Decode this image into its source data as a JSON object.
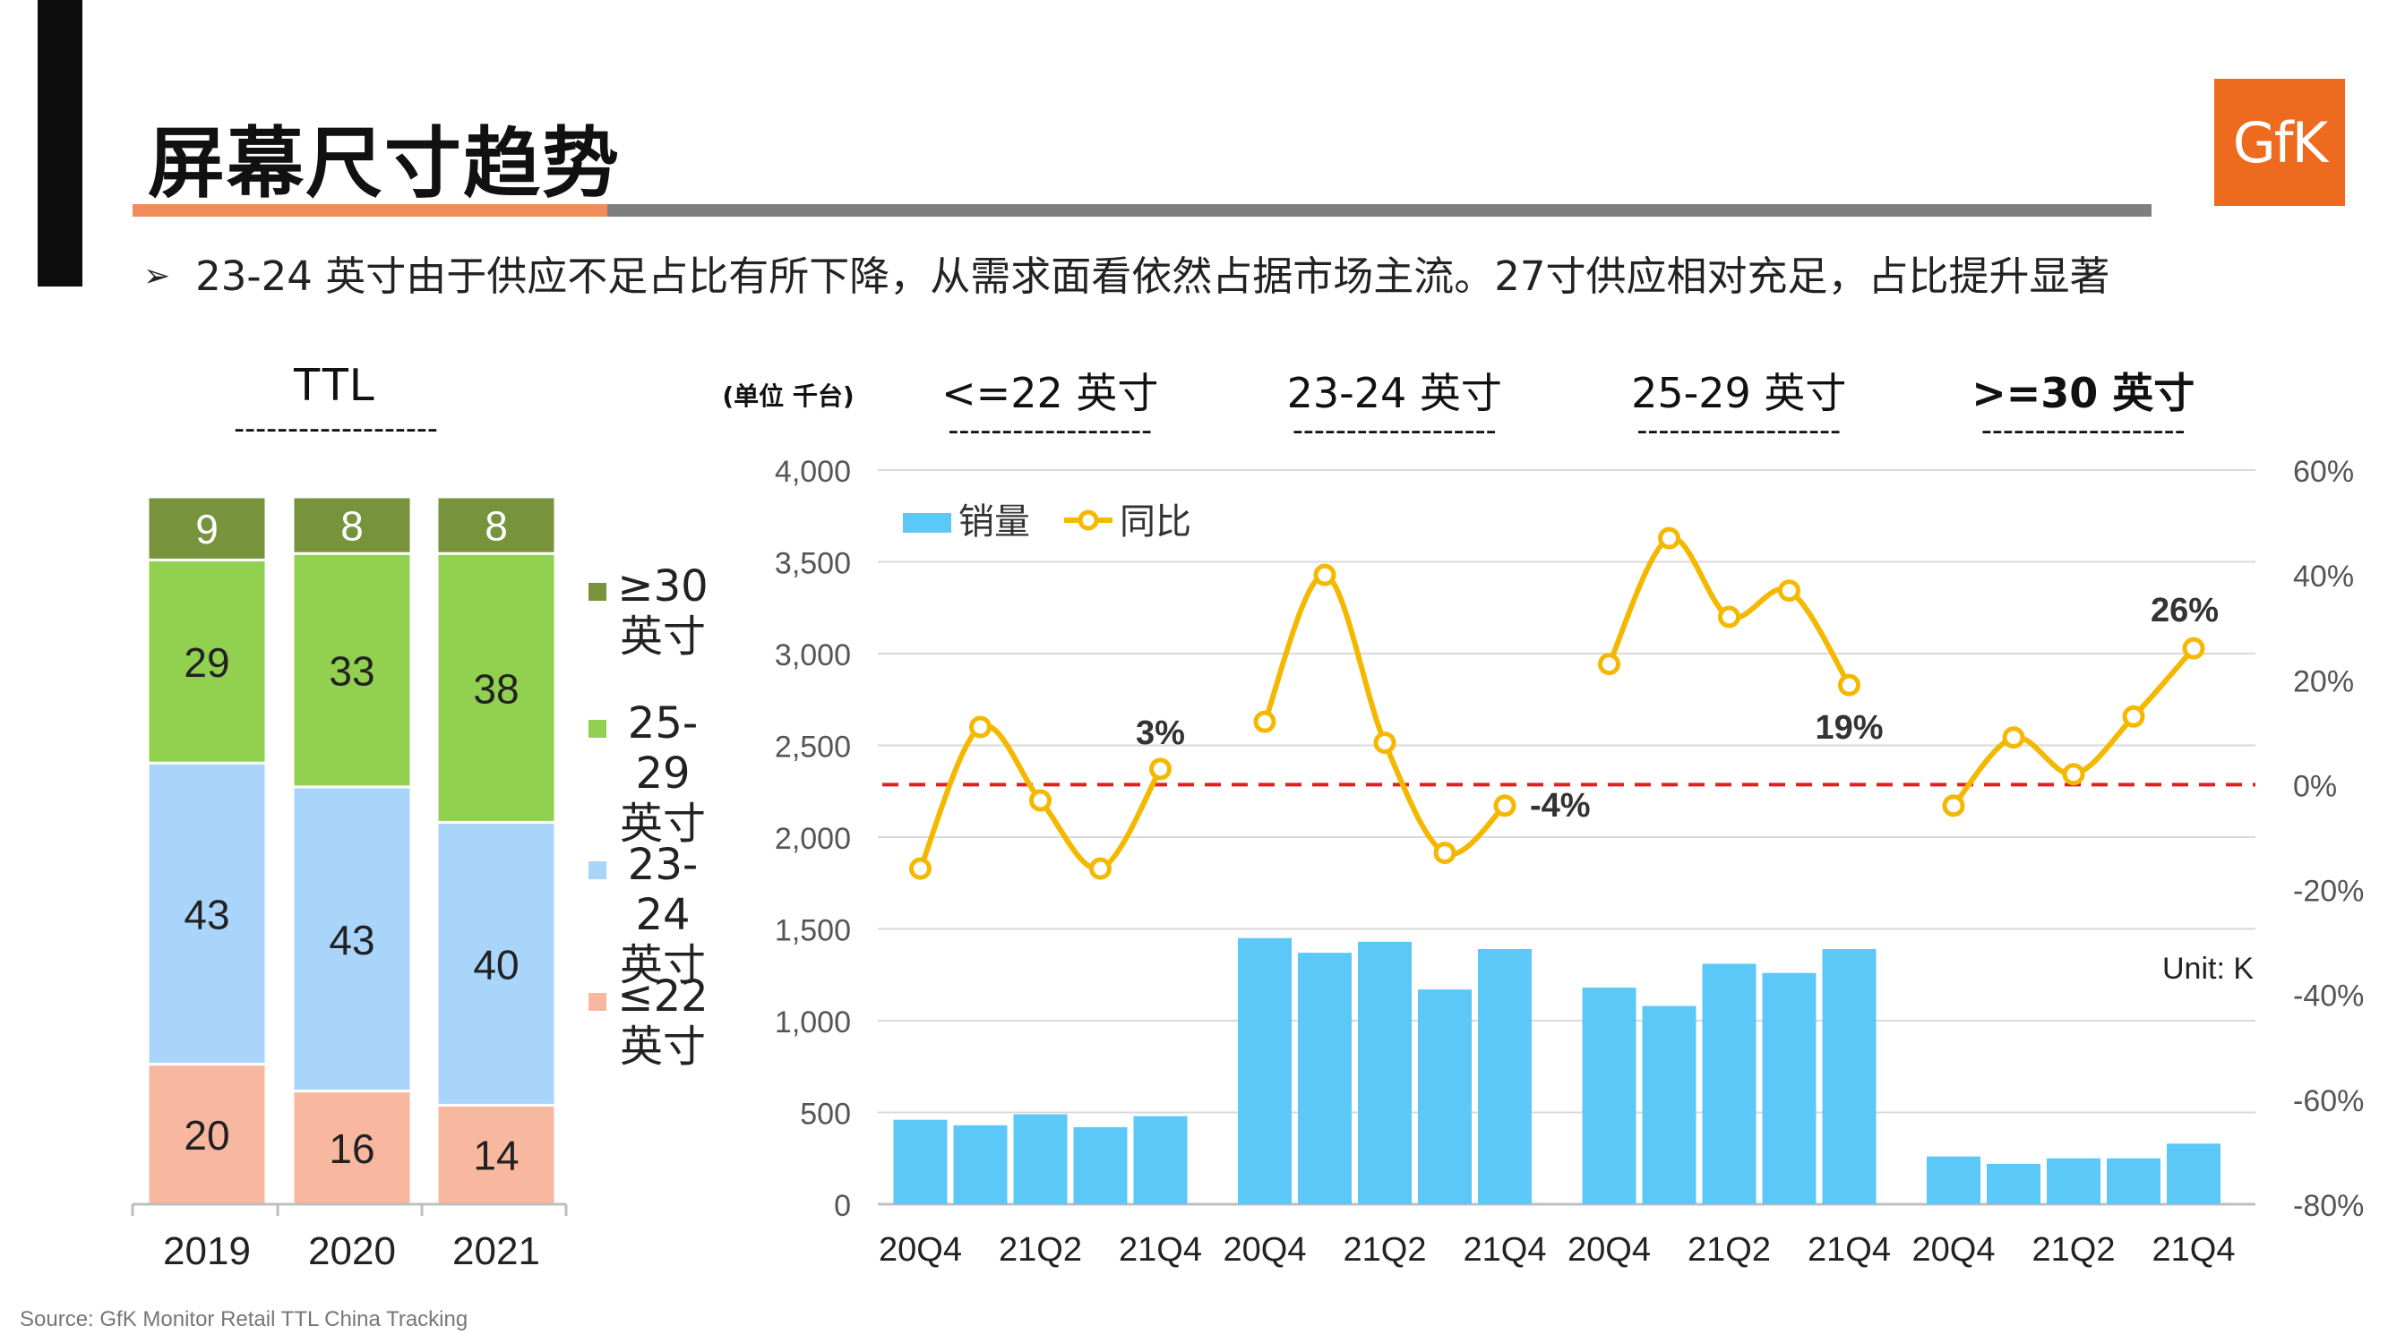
{
  "page": {
    "title": "屏幕尺寸趋势",
    "bullet_marker": "➢",
    "bullet": "23-24 英寸由于供应不足占比有所下降，从需求面看依然占据市场主流。27寸供应相对充足，占比提升显著",
    "source": "Source: GfK Monitor Retail TTL China Tracking",
    "logo": "GfK",
    "colors": {
      "accent_orange": "#f08c5a",
      "logo_orange": "#ee6a1f",
      "rule_gray": "#7f7f7f"
    }
  },
  "chart_data": [
    {
      "type": "bar",
      "stacked": true,
      "title": "TTL",
      "title_underline": "-------------------",
      "categories": [
        "2019",
        "2020",
        "2021"
      ],
      "series": [
        {
          "name": "≤22 英寸",
          "legend_lines": [
            "≤22",
            "英寸"
          ],
          "color": "#f8b8a0",
          "values": [
            20,
            16,
            14
          ]
        },
        {
          "name": "23-24 英寸",
          "legend_lines": [
            "23-",
            "24",
            "英寸"
          ],
          "color": "#a9d5fb",
          "values": [
            43,
            43,
            40
          ]
        },
        {
          "name": "25-29 英寸",
          "legend_lines": [
            "25-",
            "29",
            "英寸"
          ],
          "color": "#92d050",
          "values": [
            29,
            33,
            38
          ]
        },
        {
          "name": "≥30 英寸",
          "legend_lines": [
            "≥30",
            "英寸"
          ],
          "color": "#77933c",
          "values": [
            9,
            8,
            8
          ]
        }
      ]
    },
    {
      "type": "bar+line",
      "unit_label": "(单位 千台)",
      "unit_note": "Unit: K",
      "groups": [
        {
          "label": "<=22 英寸",
          "underline": "-------------------"
        },
        {
          "label": "23-24 英寸",
          "underline": "-------------------"
        },
        {
          "label": "25-29 英寸",
          "underline": "-------------------"
        },
        {
          "label": ">=30 英寸",
          "underline": "-------------------"
        }
      ],
      "x_tick_labels": [
        "20Q4",
        "",
        "21Q2",
        "",
        "21Q4",
        "20Q4",
        "",
        "21Q2",
        "",
        "21Q4",
        "20Q4",
        "",
        "21Q2",
        "",
        "21Q4",
        "20Q4",
        "",
        "21Q2",
        "",
        "21Q4"
      ],
      "ylim": [
        0,
        4000
      ],
      "yticks": [
        "0",
        "500",
        "1,000",
        "1,500",
        "2,000",
        "2,500",
        "3,000",
        "3,500",
        "4,000"
      ],
      "y2lim": [
        -80,
        60
      ],
      "y2ticks": [
        "-80%",
        "-60%",
        "-40%",
        "-20%",
        "0%",
        "20%",
        "40%",
        "60%"
      ],
      "zero_reference_line": {
        "value": 0,
        "color": "#e02020",
        "style": "dashed"
      },
      "series": [
        {
          "name": "销量",
          "type": "bar",
          "color": "#5bc8f8",
          "values": [
            [
              460,
              430,
              490,
              420,
              480
            ],
            [
              1450,
              1370,
              1430,
              1170,
              1390
            ],
            [
              1180,
              1080,
              1310,
              1260,
              1390
            ],
            [
              260,
              220,
              250,
              250,
              330
            ]
          ]
        },
        {
          "name": "同比",
          "type": "line",
          "axis": "right",
          "color": "#f5b800",
          "values": [
            [
              -16,
              11,
              -3,
              -16,
              3
            ],
            [
              12,
              40,
              8,
              -13,
              -4
            ],
            [
              23,
              47,
              32,
              37,
              19
            ],
            [
              -4,
              9,
              2,
              13,
              26
            ]
          ]
        }
      ],
      "annotations": [
        "3%",
        "-4%",
        "19%",
        "26%"
      ]
    }
  ]
}
